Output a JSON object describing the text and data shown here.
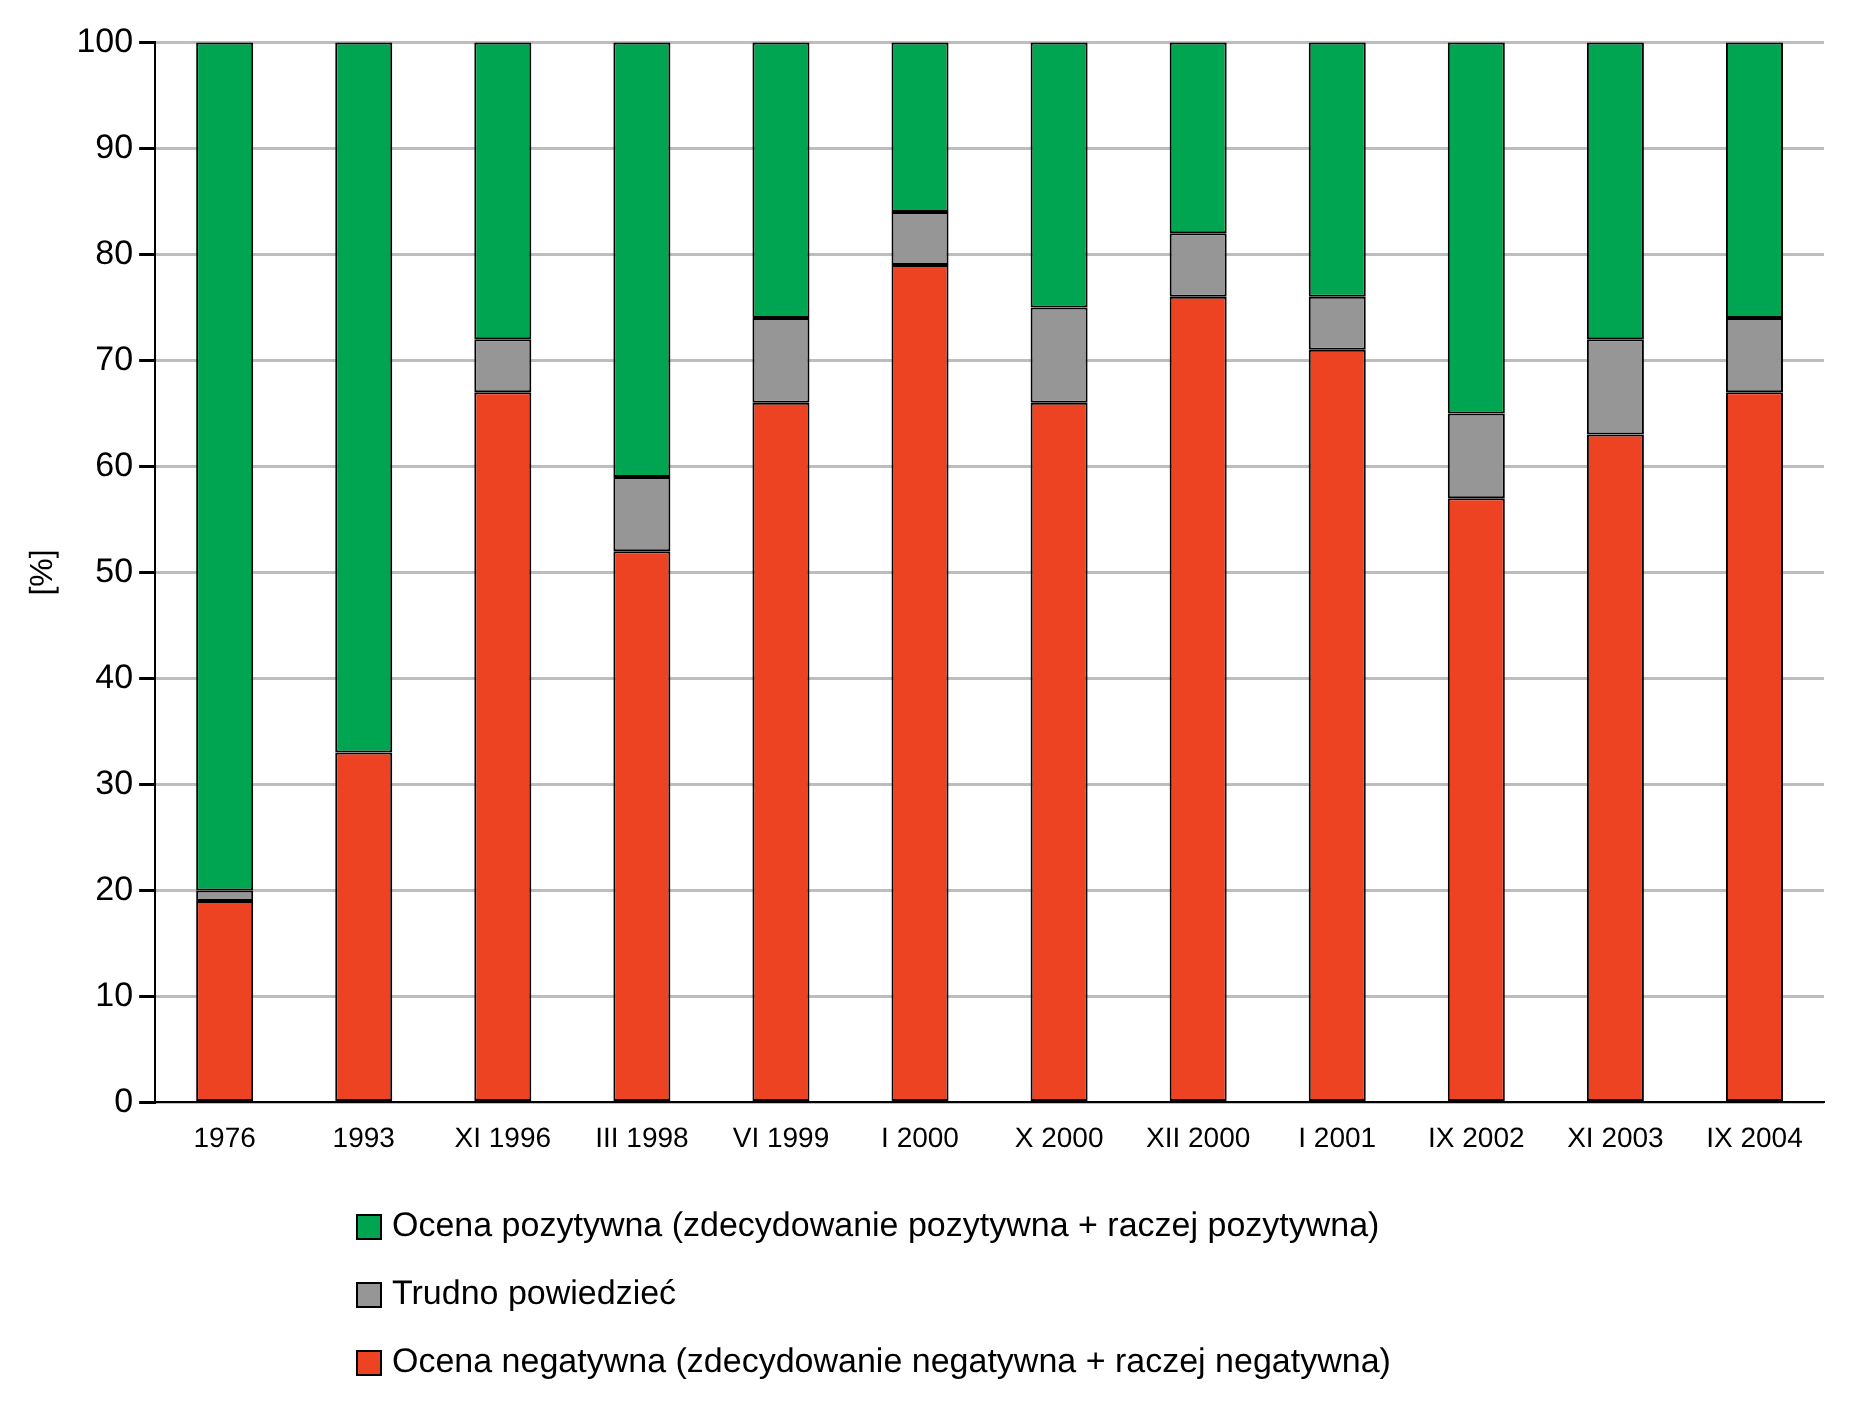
{
  "chart_data": {
    "type": "bar",
    "stacked": true,
    "ylabel": "[%]",
    "categories": [
      "1976",
      "1993",
      "XI 1996",
      "III 1998",
      "VI 1999",
      "I 2000",
      "X 2000",
      "XII 2000",
      "I 2001",
      "IX 2002",
      "XI 2003",
      "IX 2004"
    ],
    "series": [
      {
        "name": "Ocena negatywna (zdecydowanie negatywna + raczej negatywna)",
        "color": "#ee4323",
        "values": [
          19,
          33,
          67,
          52,
          66,
          79,
          66,
          76,
          71,
          57,
          63,
          67
        ]
      },
      {
        "name": "Trudno powiedzieć",
        "color": "#969696",
        "values": [
          1,
          0,
          5,
          7,
          8,
          5,
          9,
          6,
          5,
          8,
          9,
          7
        ]
      },
      {
        "name": "Ocena pozytywna (zdecydowanie pozytywna + raczej pozytywna)",
        "color": "#00a551",
        "values": [
          80,
          67,
          28,
          41,
          26,
          16,
          25,
          18,
          24,
          35,
          28,
          26
        ]
      }
    ],
    "ylim": [
      0,
      100
    ],
    "yticks": [
      0,
      10,
      20,
      30,
      40,
      50,
      60,
      70,
      80,
      90,
      100
    ],
    "grid": "y",
    "legend": "bottom"
  }
}
